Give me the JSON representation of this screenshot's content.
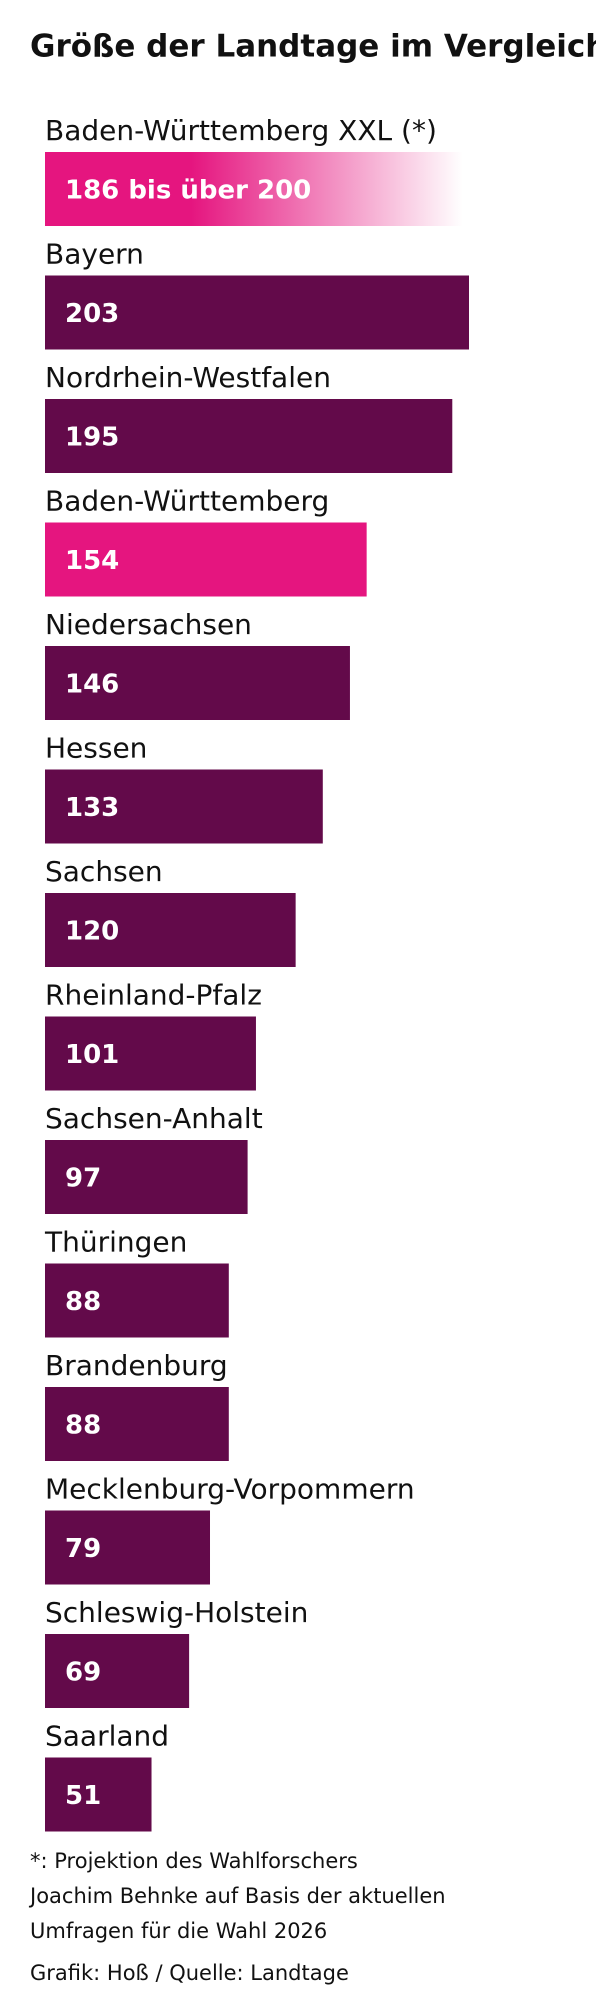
{
  "chart_data": {
    "type": "bar",
    "title": "Größe der Landtage im Vergleich",
    "categories": [
      "Baden-Württemberg XXL (*)",
      "Bayern",
      "Nordrhein-Westfalen",
      "Baden-Württemberg",
      "Niedersachsen",
      "Hessen",
      "Sachsen",
      "Rheinland-Pfalz",
      "Sachsen-Anhalt",
      "Thüringen",
      "Brandenburg",
      "Mecklenburg-Vorpommern",
      "Schleswig-Holstein",
      "Saarland"
    ],
    "values": [
      200,
      203,
      195,
      154,
      146,
      133,
      120,
      101,
      97,
      88,
      88,
      79,
      69,
      51
    ],
    "value_labels": [
      "186 bis über 200",
      "203",
      "195",
      "154",
      "146",
      "133",
      "120",
      "101",
      "97",
      "88",
      "88",
      "79",
      "69",
      "51"
    ],
    "colors": [
      "#e5157f",
      "#630a4a",
      "#630a4a",
      "#e5157f",
      "#630a4a",
      "#630a4a",
      "#630a4a",
      "#630a4a",
      "#630a4a",
      "#630a4a",
      "#630a4a",
      "#630a4a",
      "#630a4a",
      "#630a4a"
    ],
    "footnote": [
      "*: Projektion des Wahlforschers",
      "Joachim Behnke auf Basis der aktuellen",
      "Umfragen für die Wahl 2026"
    ],
    "source": "Grafik: Hoß / Quelle: Landtage"
  }
}
